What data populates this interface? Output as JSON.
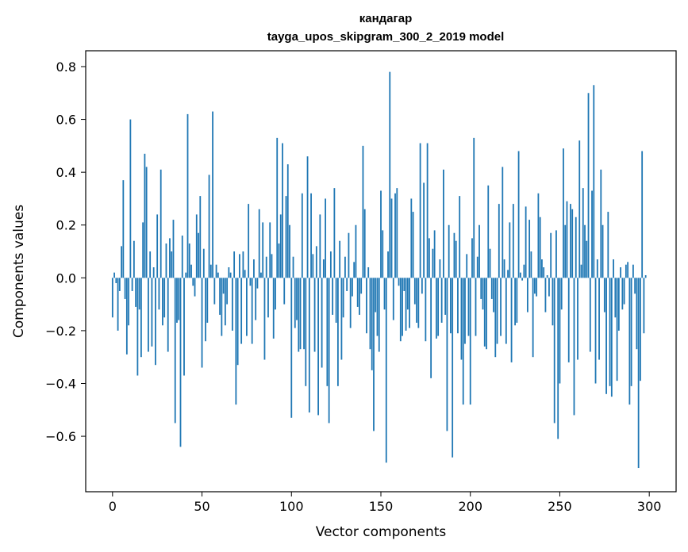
{
  "chart_data": {
    "type": "bar",
    "title": "кандагар",
    "subtitle": "tayga_upos_skipgram_300_2_2019 model",
    "xlabel": "Vector components",
    "ylabel": "Components values",
    "xlim": [
      -15,
      315
    ],
    "ylim": [
      -0.81,
      0.86
    ],
    "xticks": [
      0,
      50,
      100,
      150,
      200,
      250,
      300
    ],
    "yticks": [
      -0.6,
      -0.4,
      -0.2,
      0.0,
      0.2,
      0.4,
      0.6,
      0.8
    ],
    "ytick_labels": [
      "−0.6",
      "−0.4",
      "−0.2",
      "0.0",
      "0.2",
      "0.4",
      "0.6",
      "0.8"
    ],
    "bar_color": "#1f77b4",
    "grid": false,
    "values": [
      -0.15,
      0.02,
      -0.02,
      -0.2,
      -0.05,
      0.12,
      0.37,
      -0.08,
      -0.29,
      -0.18,
      0.6,
      -0.05,
      0.14,
      -0.11,
      -0.37,
      -0.12,
      -0.3,
      0.21,
      0.47,
      0.42,
      -0.28,
      0.1,
      -0.26,
      0.04,
      -0.33,
      0.24,
      -0.12,
      0.41,
      -0.18,
      -0.15,
      0.13,
      -0.28,
      0.15,
      0.1,
      0.22,
      -0.55,
      -0.17,
      -0.16,
      -0.64,
      0.16,
      -0.37,
      0.02,
      0.62,
      0.13,
      0.05,
      -0.03,
      -0.07,
      0.24,
      0.17,
      0.31,
      -0.34,
      0.11,
      -0.24,
      -0.17,
      0.39,
      0.05,
      0.63,
      -0.1,
      0.05,
      0.02,
      -0.14,
      -0.22,
      -0.06,
      -0.18,
      -0.1,
      0.04,
      0.02,
      -0.2,
      0.1,
      -0.48,
      -0.33,
      0.09,
      -0.25,
      0.1,
      0.03,
      -0.22,
      0.28,
      -0.03,
      -0.25,
      0.07,
      -0.16,
      -0.04,
      0.26,
      0.02,
      0.21,
      -0.31,
      0.08,
      -0.15,
      0.21,
      0.09,
      -0.23,
      -0.12,
      0.53,
      0.13,
      0.24,
      0.51,
      -0.1,
      0.31,
      0.43,
      0.2,
      -0.53,
      0.08,
      -0.19,
      -0.16,
      -0.28,
      -0.27,
      0.32,
      -0.27,
      -0.41,
      0.46,
      -0.51,
      0.32,
      0.09,
      -0.28,
      0.12,
      -0.52,
      0.24,
      -0.34,
      0.07,
      0.3,
      -0.41,
      -0.55,
      0.1,
      -0.14,
      0.34,
      -0.17,
      -0.41,
      0.14,
      -0.31,
      -0.15,
      0.08,
      -0.05,
      0.17,
      -0.19,
      -0.07,
      0.06,
      0.2,
      -0.11,
      -0.14,
      -0.06,
      0.5,
      0.26,
      -0.21,
      0.04,
      -0.27,
      -0.35,
      -0.58,
      -0.13,
      -0.22,
      -0.28,
      0.33,
      0.18,
      -0.12,
      -0.7,
      0.1,
      0.78,
      0.3,
      -0.16,
      0.32,
      0.34,
      -0.03,
      -0.24,
      -0.22,
      -0.05,
      -0.2,
      -0.12,
      -0.19,
      0.3,
      0.25,
      -0.1,
      -0.17,
      -0.19,
      0.51,
      -0.06,
      0.36,
      -0.24,
      0.51,
      0.15,
      -0.38,
      0.11,
      0.18,
      -0.23,
      -0.22,
      0.07,
      -0.17,
      0.41,
      -0.14,
      -0.58,
      0.2,
      -0.21,
      -0.68,
      0.17,
      0.14,
      -0.21,
      0.31,
      -0.31,
      -0.48,
      -0.25,
      0.09,
      -0.22,
      -0.48,
      0.15,
      0.53,
      -0.22,
      0.08,
      0.2,
      -0.08,
      -0.12,
      -0.26,
      -0.27,
      0.35,
      0.11,
      -0.08,
      -0.13,
      -0.3,
      -0.25,
      0.28,
      -0.22,
      0.42,
      0.07,
      -0.25,
      0.03,
      0.21,
      -0.32,
      0.28,
      -0.18,
      -0.17,
      0.48,
      0.02,
      -0.01,
      0.05,
      0.27,
      -0.13,
      0.22,
      0.1,
      -0.3,
      -0.06,
      -0.07,
      0.32,
      0.23,
      0.07,
      0.04,
      -0.13,
      0.01,
      -0.07,
      0.17,
      -0.18,
      -0.55,
      0.18,
      -0.61,
      -0.4,
      -0.12,
      0.49,
      0.2,
      0.29,
      -0.32,
      0.28,
      0.26,
      -0.52,
      0.23,
      -0.31,
      0.52,
      0.05,
      0.34,
      0.2,
      0.14,
      0.7,
      -0.28,
      0.33,
      0.73,
      -0.4,
      0.07,
      -0.31,
      0.41,
      0.2,
      -0.13,
      -0.44,
      0.25,
      -0.41,
      -0.45,
      0.07,
      -0.15,
      -0.39,
      -0.2,
      0.04,
      -0.12,
      -0.1,
      0.05,
      0.06,
      -0.48,
      -0.41,
      0.05,
      -0.06,
      -0.27,
      -0.72,
      -0.39,
      0.48,
      -0.21,
      0.01
    ]
  }
}
